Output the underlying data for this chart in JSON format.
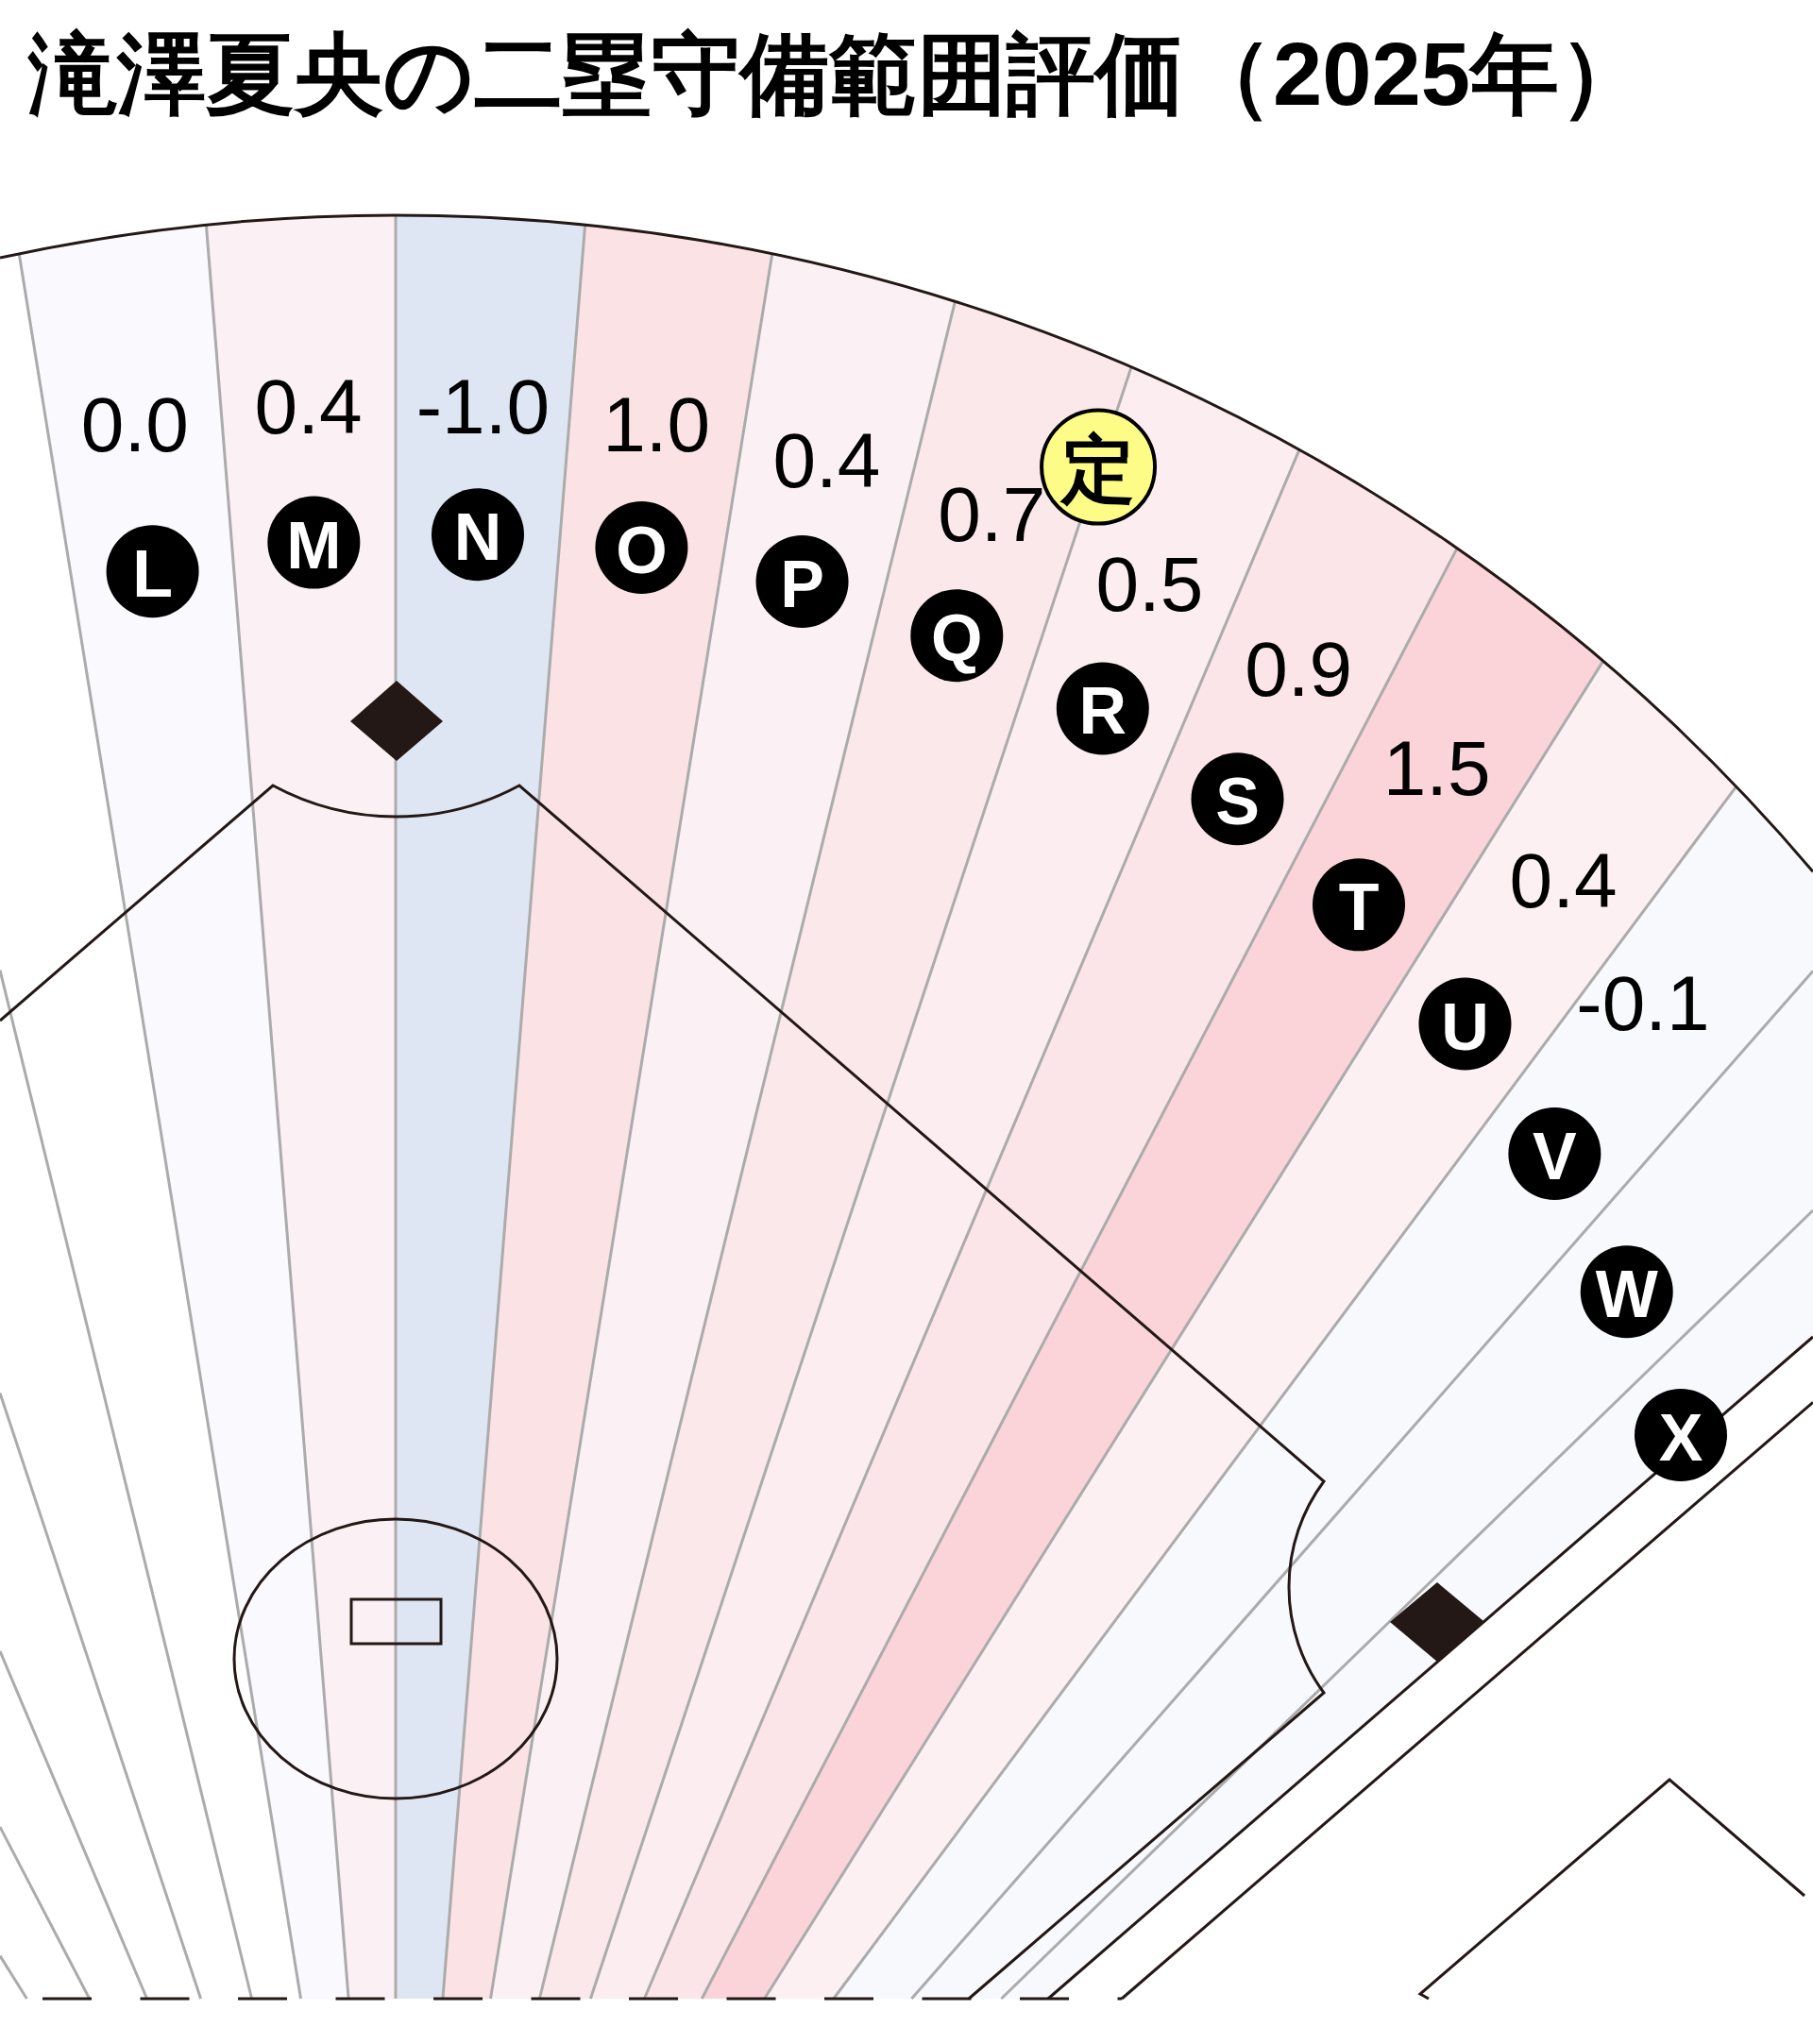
{
  "chart_data": {
    "type": "other",
    "title": "滝澤夏央の二塁守備範囲評価（2025年）",
    "categories": [
      null,
      null,
      null,
      null,
      null,
      "L",
      "M",
      "N",
      "O",
      "P",
      "Q",
      "R",
      "S",
      "T",
      "U",
      "V",
      "W",
      "X"
    ],
    "values": [
      null,
      null,
      null,
      null,
      null,
      0.0,
      0.4,
      -1.0,
      1.0,
      0.4,
      0.7,
      0.5,
      0.9,
      1.5,
      0.4,
      -0.1,
      null,
      null
    ],
    "value_labels": [
      null,
      null,
      null,
      null,
      null,
      "0.0",
      "0.4",
      "-1.0",
      "1.0",
      "0.4",
      "0.7",
      "0.5",
      "0.9",
      "1.5",
      "0.4",
      "-0.1",
      null,
      null
    ],
    "colors": [
      null,
      null,
      null,
      null,
      null,
      "#f9f9fe",
      "#fbf0f4",
      "#dfe6f3",
      "#fbe2e5",
      "#fbf0f4",
      "#fbe8eb",
      "#fcedf0",
      "#fbe5e8",
      "#fad4d9",
      "#fcf0f3",
      "#f8f9fd",
      "#f8f9fd",
      "#f8f9fd"
    ],
    "annotations": [
      {
        "text": "定",
        "x": "R"
      }
    ]
  }
}
